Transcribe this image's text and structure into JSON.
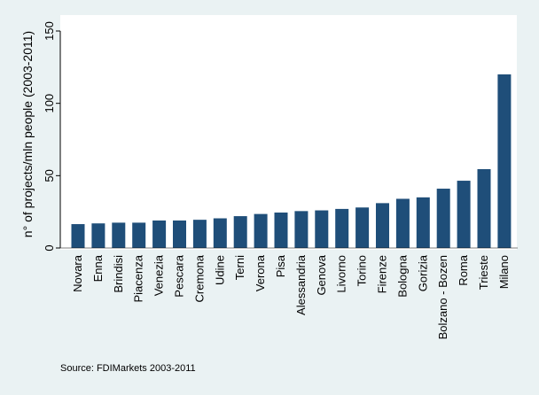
{
  "chart_data": {
    "type": "bar",
    "ylabel": "n° of projects/mln people (2003-2011)",
    "ylim": [
      0,
      150
    ],
    "yticks": [
      0,
      50,
      100,
      150
    ],
    "grid": false,
    "bar_color": "#1f4e79",
    "categories": [
      "Novara",
      "Enna",
      "Brindisi",
      "Piacenza",
      "Venezia",
      "Pescara",
      "Cremona",
      "Udine",
      "Terni",
      "Verona",
      "Pisa",
      "Alessandria",
      "Genova",
      "Livorno",
      "Torino",
      "Firenze",
      "Bologna",
      "Gorizia",
      "Bolzano - Bozen",
      "Roma",
      "Trieste",
      "Milano"
    ],
    "values": [
      16.5,
      17,
      17.5,
      17.5,
      19,
      19,
      19.5,
      20.5,
      22,
      23.5,
      24.5,
      25.5,
      26,
      27,
      28,
      31,
      34,
      35,
      41,
      46.5,
      54.5,
      120
    ]
  },
  "source_note": "Source: FDIMarkets 2003-2011",
  "colors": {
    "page_background": "#eaf2f3",
    "plot_background": "#ffffff",
    "bar": "#1f4e79"
  }
}
